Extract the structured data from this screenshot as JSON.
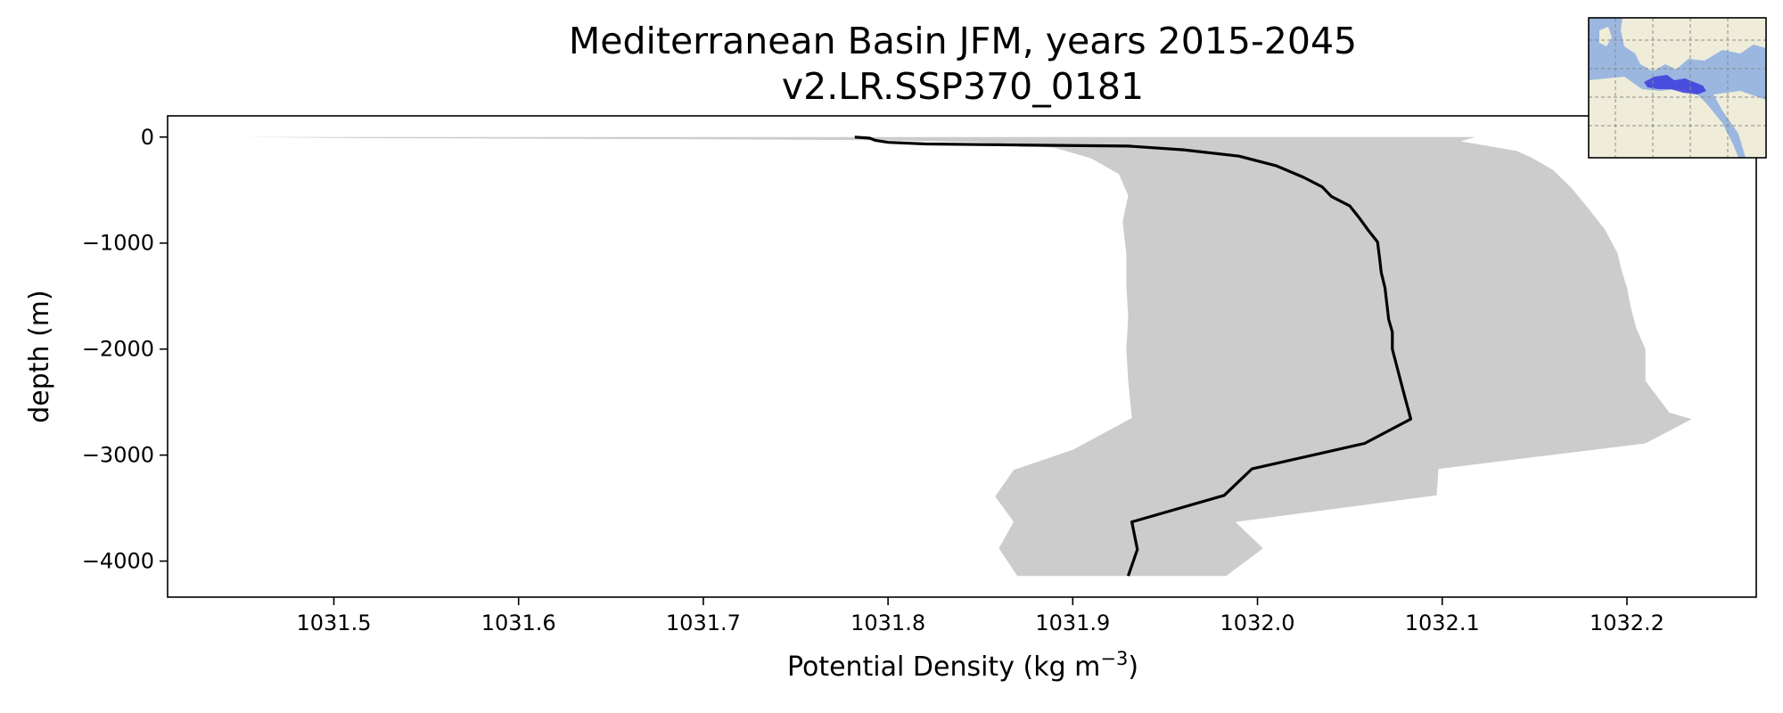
{
  "chart_data": {
    "type": "line",
    "title": "Mediterranean Basin JFM, years 2015-2045",
    "subtitle": "v2.LR.SSP370_0181",
    "xlabel": "Potential Density (kg m",
    "xlabel_superscript": "−3",
    "xlabel_suffix": ")",
    "ylabel": "depth (m)",
    "xlim": [
      1031.41,
      1032.27
    ],
    "ylim": [
      -4340,
      200
    ],
    "x_ticks": [
      1031.5,
      1031.6,
      1031.7,
      1031.8,
      1031.9,
      1032.0,
      1032.1,
      1032.2
    ],
    "x_tick_labels": [
      "1031.5",
      "1031.6",
      "1031.7",
      "1031.8",
      "1031.9",
      "1032.0",
      "1032.1",
      "1032.2"
    ],
    "y_ticks": [
      0,
      -1000,
      -2000,
      -3000,
      -4000
    ],
    "y_tick_labels": [
      "0",
      "−1000",
      "−2000",
      "−3000",
      "−4000"
    ],
    "grid": false,
    "series": [
      {
        "kind": "line",
        "color": "#000000",
        "points": [
          [
            1031.782,
            0
          ],
          [
            1031.79,
            -10
          ],
          [
            1031.793,
            -30
          ],
          [
            1031.8,
            -50
          ],
          [
            1031.82,
            -65
          ],
          [
            1031.87,
            -75
          ],
          [
            1031.93,
            -85
          ],
          [
            1031.96,
            -120
          ],
          [
            1031.99,
            -180
          ],
          [
            1032.01,
            -270
          ],
          [
            1032.025,
            -380
          ],
          [
            1032.035,
            -470
          ],
          [
            1032.04,
            -560
          ],
          [
            1032.05,
            -650
          ],
          [
            1032.055,
            -760
          ],
          [
            1032.06,
            -880
          ],
          [
            1032.065,
            -990
          ],
          [
            1032.066,
            -1130
          ],
          [
            1032.067,
            -1280
          ],
          [
            1032.069,
            -1420
          ],
          [
            1032.07,
            -1570
          ],
          [
            1032.071,
            -1720
          ],
          [
            1032.073,
            -1840
          ],
          [
            1032.073,
            -2000
          ],
          [
            1032.076,
            -2200
          ],
          [
            1032.079,
            -2400
          ],
          [
            1032.083,
            -2660
          ],
          [
            1032.058,
            -2890
          ],
          [
            1031.997,
            -3130
          ],
          [
            1031.982,
            -3380
          ],
          [
            1031.932,
            -3630
          ],
          [
            1031.935,
            -3890
          ],
          [
            1031.93,
            -4140
          ]
        ]
      },
      {
        "kind": "band",
        "color": "#cccccc",
        "lower": [
          [
            1031.45,
            0
          ],
          [
            1031.52,
            -10
          ],
          [
            1031.7,
            -20
          ],
          [
            1031.8,
            -30
          ],
          [
            1031.85,
            -50
          ],
          [
            1031.89,
            -100
          ],
          [
            1031.91,
            -200
          ],
          [
            1031.925,
            -350
          ],
          [
            1031.93,
            -550
          ],
          [
            1031.927,
            -800
          ],
          [
            1031.929,
            -1100
          ],
          [
            1031.929,
            -1400
          ],
          [
            1031.93,
            -1700
          ],
          [
            1031.929,
            -2000
          ],
          [
            1031.93,
            -2300
          ],
          [
            1031.932,
            -2650
          ],
          [
            1031.9,
            -2950
          ],
          [
            1031.868,
            -3140
          ],
          [
            1031.858,
            -3390
          ],
          [
            1031.868,
            -3630
          ],
          [
            1031.86,
            -3880
          ],
          [
            1031.87,
            -4140
          ],
          [
            1031.983,
            -4140
          ],
          [
            1032.003,
            -3880
          ],
          [
            1031.988,
            -3630
          ]
        ],
        "upper": [
          [
            1032.118,
            0
          ],
          [
            1032.11,
            -40
          ],
          [
            1032.14,
            -130
          ],
          [
            1032.148,
            -190
          ],
          [
            1032.16,
            -310
          ],
          [
            1032.17,
            -480
          ],
          [
            1032.178,
            -650
          ],
          [
            1032.188,
            -870
          ],
          [
            1032.195,
            -1100
          ],
          [
            1032.197,
            -1250
          ],
          [
            1032.2,
            -1420
          ],
          [
            1032.202,
            -1600
          ],
          [
            1032.205,
            -1800
          ],
          [
            1032.21,
            -2000
          ],
          [
            1032.21,
            -2300
          ],
          [
            1032.223,
            -2600
          ],
          [
            1032.235,
            -2660
          ],
          [
            1032.21,
            -2890
          ],
          [
            1032.098,
            -3130
          ],
          [
            1032.097,
            -3380
          ]
        ]
      }
    ],
    "inset_map": {
      "region": "Mediterranean Basin",
      "ocean_color": "#9bb7e0",
      "land_color": "#efedd9",
      "region_color": "#3b3bdc"
    }
  }
}
